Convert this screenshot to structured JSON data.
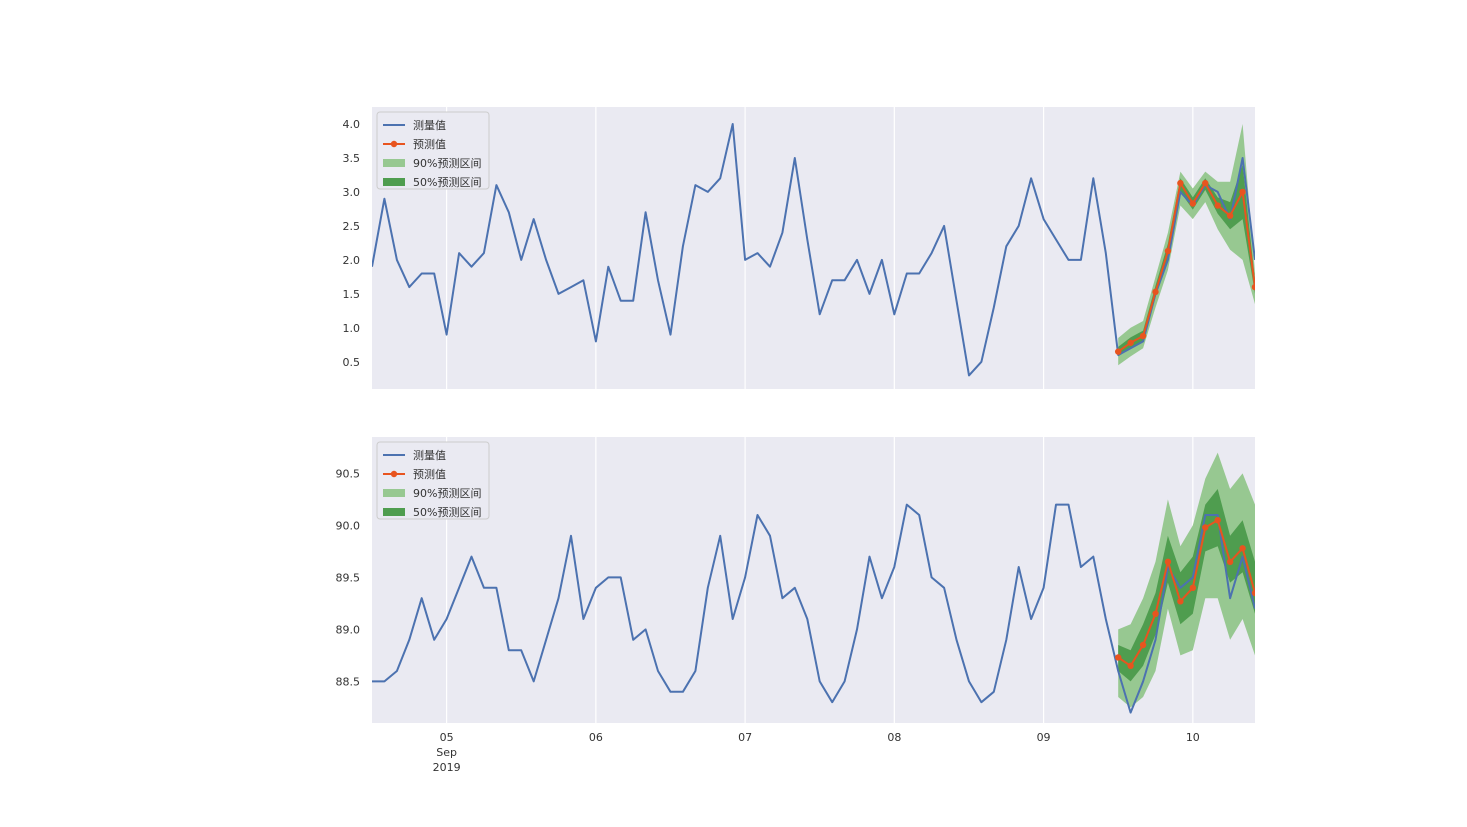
{
  "legend": {
    "measured": "测量值",
    "predicted": "预测值",
    "pi90": "90%预测区间",
    "pi50": "50%预测区间"
  },
  "x_axis": {
    "ticks": [
      {
        "x": 6,
        "label": "05"
      },
      {
        "x": 18,
        "label": "06"
      },
      {
        "x": 30,
        "label": "07"
      },
      {
        "x": 42,
        "label": "08"
      },
      {
        "x": 54,
        "label": "09"
      },
      {
        "x": 66,
        "label": "10"
      }
    ],
    "month": "Sep",
    "year": "2019",
    "xlim": [
      0,
      71
    ]
  },
  "colors": {
    "measured": "#4c72b0",
    "predicted": "#e8541f",
    "pi90": "#97c891",
    "pi50": "#4f9d4f",
    "bg": "#eaeaf2",
    "grid": "#ffffff"
  },
  "chart_data": [
    {
      "type": "line",
      "ylim": [
        0.1,
        4.25
      ],
      "yticks": [
        "0.5",
        "1.0",
        "1.5",
        "2.0",
        "2.5",
        "3.0",
        "3.5",
        "4.0"
      ],
      "series": [
        {
          "name": "测量值",
          "x": [
            0,
            1,
            2,
            3,
            4,
            5,
            6,
            7,
            8,
            9,
            10,
            11,
            12,
            13,
            14,
            15,
            16,
            17,
            18,
            19,
            20,
            21,
            22,
            23,
            24,
            25,
            26,
            27,
            28,
            29,
            30,
            31,
            32,
            33,
            34,
            35,
            36,
            37,
            38,
            39,
            40,
            41,
            42,
            43,
            44,
            45,
            46,
            47,
            48,
            49,
            50,
            51,
            52,
            53,
            54,
            55,
            56,
            57,
            58,
            59,
            60,
            61,
            62,
            63,
            64,
            65,
            66,
            67,
            68,
            69,
            70,
            71
          ],
          "values": [
            1.9,
            2.9,
            2.0,
            1.6,
            1.8,
            1.8,
            0.9,
            2.1,
            1.9,
            2.1,
            3.1,
            2.7,
            2.0,
            2.6,
            2.0,
            1.5,
            1.6,
            1.7,
            0.8,
            1.9,
            1.4,
            1.4,
            2.7,
            1.7,
            0.9,
            2.2,
            3.1,
            3.0,
            3.2,
            4.0,
            2.0,
            2.1,
            1.9,
            2.4,
            3.5,
            2.3,
            1.2,
            1.7,
            1.7,
            2.0,
            1.5,
            2.0,
            1.2,
            1.8,
            1.8,
            2.1,
            2.5,
            1.4,
            0.3,
            0.5,
            1.3,
            2.2,
            2.5,
            3.2,
            2.6,
            2.3,
            2.0,
            2.0,
            3.2,
            2.1,
            0.6,
            0.7,
            0.8,
            1.5,
            2.0,
            3.0,
            2.8,
            3.1,
            3.0,
            2.6,
            3.5,
            2.0
          ]
        },
        {
          "name": "预测值",
          "x": [
            60,
            61,
            62,
            63,
            64,
            65,
            66,
            67,
            68,
            69,
            70,
            71
          ],
          "values": [
            0.65,
            0.78,
            0.88,
            1.53,
            2.13,
            3.13,
            2.83,
            3.13,
            2.8,
            2.65,
            3.0,
            1.6
          ]
        }
      ],
      "pi90": {
        "name": "90%预测区间",
        "x": [
          60,
          61,
          62,
          63,
          64,
          65,
          66,
          67,
          68,
          69,
          70,
          71
        ],
        "lower": [
          0.45,
          0.58,
          0.7,
          1.3,
          1.85,
          2.8,
          2.6,
          2.85,
          2.45,
          2.15,
          2.0,
          1.35
        ],
        "upper": [
          0.85,
          1.0,
          1.1,
          1.75,
          2.4,
          3.3,
          3.05,
          3.3,
          3.15,
          3.15,
          4.0,
          1.8
        ]
      },
      "pi50": {
        "name": "50%预测区间",
        "x": [
          60,
          61,
          62,
          63,
          64,
          65,
          66,
          67,
          68,
          69,
          70,
          71
        ],
        "lower": [
          0.58,
          0.7,
          0.8,
          1.45,
          2.02,
          3.0,
          2.74,
          3.03,
          2.68,
          2.45,
          2.6,
          1.5
        ],
        "upper": [
          0.72,
          0.86,
          0.96,
          1.62,
          2.24,
          3.2,
          2.92,
          3.2,
          2.92,
          2.85,
          3.4,
          1.7
        ]
      }
    },
    {
      "type": "line",
      "ylim": [
        88.1,
        90.85
      ],
      "yticks": [
        "88.5",
        "89.0",
        "89.5",
        "90.0",
        "90.5"
      ],
      "series": [
        {
          "name": "测量值",
          "x": [
            0,
            1,
            2,
            3,
            4,
            5,
            6,
            7,
            8,
            9,
            10,
            11,
            12,
            13,
            14,
            15,
            16,
            17,
            18,
            19,
            20,
            21,
            22,
            23,
            24,
            25,
            26,
            27,
            28,
            29,
            30,
            31,
            32,
            33,
            34,
            35,
            36,
            37,
            38,
            39,
            40,
            41,
            42,
            43,
            44,
            45,
            46,
            47,
            48,
            49,
            50,
            51,
            52,
            53,
            54,
            55,
            56,
            57,
            58,
            59,
            60,
            61,
            62,
            63,
            64,
            65,
            66,
            67,
            68,
            69,
            70,
            71
          ],
          "values": [
            88.5,
            88.5,
            88.6,
            88.9,
            89.3,
            88.9,
            89.1,
            89.4,
            89.7,
            89.4,
            89.4,
            88.8,
            88.8,
            88.5,
            88.9,
            89.3,
            89.9,
            89.1,
            89.4,
            89.5,
            89.5,
            88.9,
            89.0,
            88.6,
            88.4,
            88.4,
            88.6,
            89.4,
            89.9,
            89.1,
            89.5,
            90.1,
            89.9,
            89.3,
            89.4,
            89.1,
            88.5,
            88.3,
            88.5,
            89.0,
            89.7,
            89.3,
            89.6,
            90.2,
            90.1,
            89.5,
            89.4,
            88.9,
            88.5,
            88.3,
            88.4,
            88.9,
            89.6,
            89.1,
            89.4,
            90.2,
            90.2,
            89.6,
            89.7,
            89.1,
            88.6,
            88.2,
            88.5,
            88.9,
            89.6,
            89.4,
            89.5,
            90.1,
            90.1,
            89.3,
            89.7,
            89.2
          ]
        },
        {
          "name": "预测值",
          "x": [
            60,
            61,
            62,
            63,
            64,
            65,
            66,
            67,
            68,
            69,
            70,
            71
          ],
          "values": [
            88.73,
            88.65,
            88.85,
            89.15,
            89.65,
            89.27,
            89.4,
            89.98,
            90.05,
            89.65,
            89.78,
            89.35
          ]
        }
      ],
      "pi90": {
        "name": "90%预测区间",
        "x": [
          60,
          61,
          62,
          63,
          64,
          65,
          66,
          67,
          68,
          69,
          70,
          71
        ],
        "lower": [
          88.35,
          88.25,
          88.35,
          88.6,
          89.2,
          88.75,
          88.8,
          89.3,
          89.3,
          88.9,
          89.1,
          88.75
        ],
        "upper": [
          89.0,
          89.05,
          89.3,
          89.65,
          90.25,
          89.8,
          90.0,
          90.45,
          90.7,
          90.35,
          90.5,
          90.2
        ]
      },
      "pi50": {
        "name": "50%预测区间",
        "x": [
          60,
          61,
          62,
          63,
          64,
          65,
          66,
          67,
          68,
          69,
          70,
          71
        ],
        "lower": [
          88.6,
          88.5,
          88.65,
          88.95,
          89.45,
          89.05,
          89.15,
          89.75,
          89.8,
          89.45,
          89.55,
          89.15
        ],
        "upper": [
          88.85,
          88.8,
          89.05,
          89.35,
          89.9,
          89.55,
          89.7,
          90.2,
          90.35,
          89.9,
          90.05,
          89.65
        ]
      }
    }
  ]
}
